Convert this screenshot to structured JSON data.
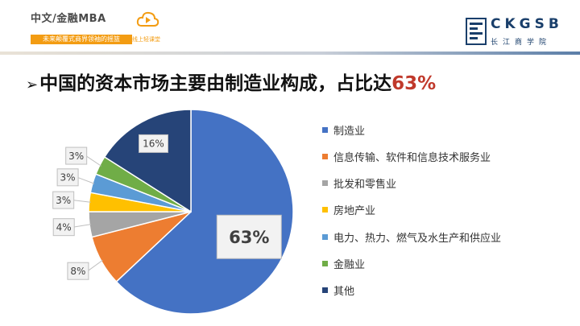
{
  "header": {
    "brand_title": "中文/金融MBA",
    "brand_tagline": "未来颠覆式商界领袖的摇篮",
    "classroom_label": "线上轻课堂",
    "school_letters": "CKGSB",
    "school_chinese": "长江商学院"
  },
  "headline": {
    "arrow": "➢",
    "text": "中国的资本市场主要由制造业构成，占比达",
    "highlight": "63%"
  },
  "colors": {
    "accent": "#c0392b",
    "brand_orange": "#f39c12",
    "school_blue": "#1a3f6b"
  },
  "chart_data": {
    "type": "pie",
    "title": "",
    "legend_position": "right",
    "slices": [
      {
        "label": "制造业",
        "value": 63,
        "display": "63%",
        "color": "#4472c4"
      },
      {
        "label": "信息传输、软件和信息技术服务业",
        "value": 8,
        "display": "8%",
        "color": "#ed7d31"
      },
      {
        "label": "批发和零售业",
        "value": 4,
        "display": "4%",
        "color": "#a5a5a5"
      },
      {
        "label": "房地产业",
        "value": 3,
        "display": "3%",
        "color": "#ffc000"
      },
      {
        "label": "电力、热力、燃气及水生产和供应业",
        "value": 3,
        "display": "3%",
        "color": "#5b9bd5"
      },
      {
        "label": "金融业",
        "value": 3,
        "display": "3%",
        "color": "#70ad47"
      },
      {
        "label": "其他",
        "value": 16,
        "display": "16%",
        "color": "#264478"
      }
    ]
  }
}
